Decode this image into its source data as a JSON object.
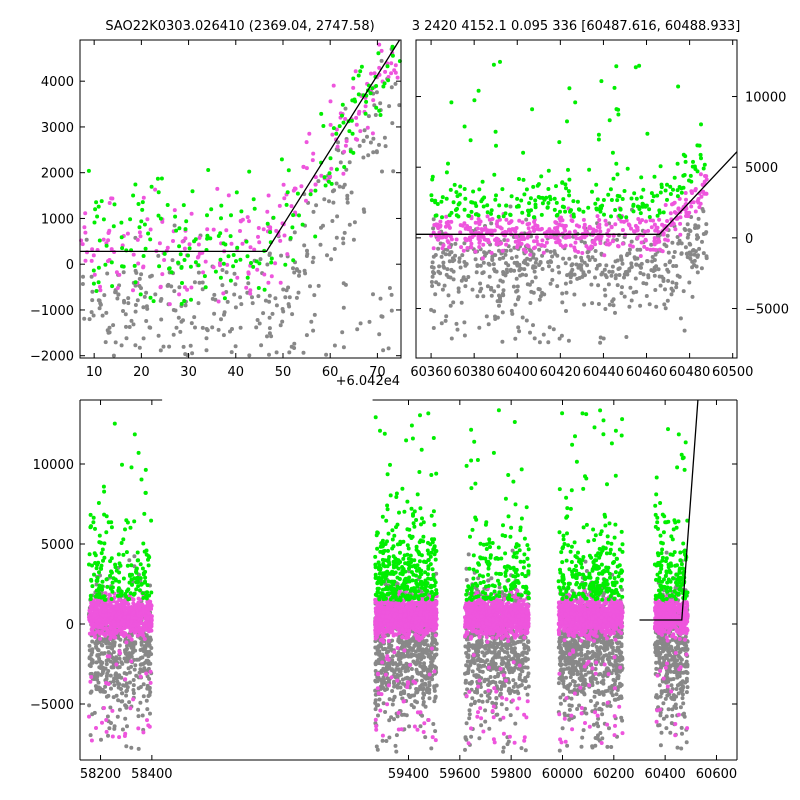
{
  "chart_data": [
    {
      "type": "scatter",
      "title": "SAO22K0303.026410 (2369.04, 2747.58)",
      "xlim": [
        7,
        75
      ],
      "ylim": [
        -2050,
        4900
      ],
      "x_offset_label": "+6.042e4",
      "xticks": [
        10,
        20,
        30,
        40,
        50,
        60,
        70
      ],
      "yticks": [
        -2000,
        -1000,
        0,
        1000,
        2000,
        3000,
        4000
      ],
      "colors": {
        "green": "#00ee00",
        "magenta": "#ee55dd",
        "gray": "#888888",
        "model": "#000000"
      },
      "model_line": {
        "x": [
          7,
          46.5,
          75
        ],
        "y": [
          280,
          280,
          4950
        ]
      },
      "point_clouds": [
        {
          "color": "gray",
          "x_range": [
            7,
            75
          ],
          "y_range": [
            -2050,
            4700
          ],
          "count": 260
        },
        {
          "color": "magenta",
          "x_range": [
            7,
            75
          ],
          "y_range": [
            -700,
            4700
          ],
          "count": 220
        },
        {
          "color": "green",
          "x_range": [
            7,
            75
          ],
          "y_range": [
            -500,
            4700
          ],
          "count": 200
        }
      ]
    },
    {
      "type": "scatter",
      "title": "3 2420 4152.1 0.095 336 [60487.616, 60488.933]",
      "xlim": [
        60353,
        60502
      ],
      "ylim": [
        -8500,
        14000
      ],
      "xticks": [
        60360,
        60380,
        60400,
        60420,
        60440,
        60460,
        60480,
        60500
      ],
      "yticks": [
        -5000,
        0,
        5000,
        10000
      ],
      "yaxis_side": "right",
      "model_line": {
        "x": [
          60353,
          60466,
          60502
        ],
        "y": [
          250,
          250,
          6100
        ]
      },
      "point_clouds": [
        {
          "color": "gray",
          "x_range": [
            60360,
            60488
          ],
          "y_range": [
            -8000,
            4000
          ],
          "count": 500
        },
        {
          "color": "magenta",
          "x_range": [
            60360,
            60488
          ],
          "y_range": [
            -1500,
            5000
          ],
          "count": 450
        },
        {
          "color": "green",
          "x_range": [
            60360,
            60488
          ],
          "y_range": [
            -3000,
            13000
          ],
          "count": 260
        }
      ]
    },
    {
      "type": "scatter",
      "title": "",
      "xlim": [
        58120,
        60680
      ],
      "ylim": [
        -8500,
        14000
      ],
      "xticks": [
        58200,
        58400,
        59400,
        59600,
        59800,
        60000,
        60200,
        60400,
        60600
      ],
      "yticks": [
        -5000,
        0,
        5000,
        10000
      ],
      "axis_break": {
        "left_end": 58440,
        "right_start": 59260
      },
      "model_line": {
        "x": [
          60300,
          60465,
          60530
        ],
        "y": [
          250,
          250,
          14500
        ]
      },
      "seasons": [
        {
          "x_range": [
            58155,
            58400
          ],
          "count_gray": 500,
          "count_magenta": 700,
          "count_green": 160
        },
        {
          "x_range": [
            59270,
            59510
          ],
          "count_gray": 700,
          "count_magenta": 900,
          "count_green": 320
        },
        {
          "x_range": [
            59620,
            59870
          ],
          "count_gray": 600,
          "count_magenta": 800,
          "count_green": 160
        },
        {
          "x_range": [
            59985,
            60235
          ],
          "count_gray": 700,
          "count_magenta": 800,
          "count_green": 230
        },
        {
          "x_range": [
            60360,
            60488
          ],
          "count_gray": 400,
          "count_magenta": 350,
          "count_green": 140
        }
      ]
    }
  ]
}
